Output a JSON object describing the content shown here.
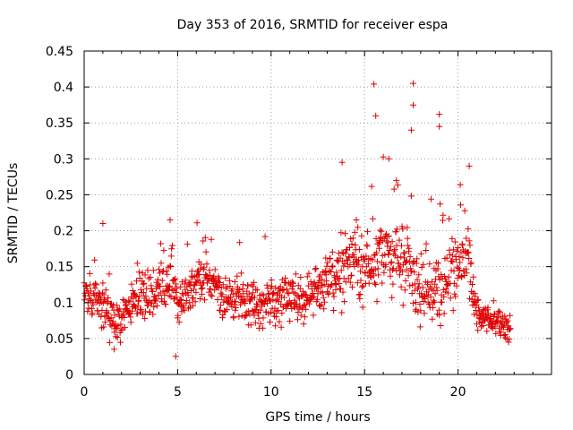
{
  "chart_data": {
    "type": "scatter",
    "title": "Day 353 of 2016, SRMTID for receiver espa",
    "xlabel": "GPS time / hours",
    "ylabel": "SRMTID / TECUs",
    "xlim": [
      0,
      25
    ],
    "ylim": [
      0,
      0.45
    ],
    "xticks": [
      0,
      5,
      10,
      15,
      20
    ],
    "xtick_labels": [
      "0",
      "5",
      "10",
      "15",
      "20"
    ],
    "yticks": [
      0,
      0.05,
      0.1,
      0.15,
      0.2,
      0.25,
      0.3,
      0.35,
      0.4,
      0.45
    ],
    "ytick_labels": [
      "0",
      "0.05",
      "0.1",
      "0.15",
      "0.2",
      "0.25",
      "0.3",
      "0.35",
      "0.4",
      "0.45"
    ],
    "grid": true,
    "marker": "plus",
    "color": "#e00000",
    "series": [
      {
        "name": "SRMTID",
        "x_range": [
          0,
          22.8
        ],
        "x_step": 0.02,
        "baseline_profile": [
          {
            "x": 0.0,
            "y": 0.11
          },
          {
            "x": 1.0,
            "y": 0.1
          },
          {
            "x": 1.7,
            "y": 0.07
          },
          {
            "x": 2.5,
            "y": 0.1
          },
          {
            "x": 4.0,
            "y": 0.12
          },
          {
            "x": 4.6,
            "y": 0.14
          },
          {
            "x": 5.0,
            "y": 0.1
          },
          {
            "x": 6.5,
            "y": 0.14
          },
          {
            "x": 7.5,
            "y": 0.11
          },
          {
            "x": 9.0,
            "y": 0.1
          },
          {
            "x": 10.5,
            "y": 0.1
          },
          {
            "x": 12.0,
            "y": 0.11
          },
          {
            "x": 13.0,
            "y": 0.13
          },
          {
            "x": 14.0,
            "y": 0.15
          },
          {
            "x": 15.0,
            "y": 0.14
          },
          {
            "x": 16.0,
            "y": 0.17
          },
          {
            "x": 17.0,
            "y": 0.16
          },
          {
            "x": 18.0,
            "y": 0.12
          },
          {
            "x": 19.0,
            "y": 0.12
          },
          {
            "x": 20.0,
            "y": 0.16
          },
          {
            "x": 20.5,
            "y": 0.16
          },
          {
            "x": 21.0,
            "y": 0.08
          },
          {
            "x": 22.0,
            "y": 0.075
          },
          {
            "x": 22.8,
            "y": 0.06
          }
        ],
        "spread_profile": [
          {
            "x": 0.0,
            "y": 0.03
          },
          {
            "x": 13.0,
            "y": 0.035
          },
          {
            "x": 14.0,
            "y": 0.05
          },
          {
            "x": 18.5,
            "y": 0.05
          },
          {
            "x": 20.8,
            "y": 0.05
          },
          {
            "x": 21.0,
            "y": 0.02
          },
          {
            "x": 22.8,
            "y": 0.02
          }
        ],
        "notable_points": [
          {
            "x": 1.0,
            "y": 0.21
          },
          {
            "x": 4.6,
            "y": 0.215
          },
          {
            "x": 15.5,
            "y": 0.404
          },
          {
            "x": 15.6,
            "y": 0.36
          },
          {
            "x": 17.6,
            "y": 0.405
          },
          {
            "x": 17.6,
            "y": 0.375
          },
          {
            "x": 17.5,
            "y": 0.34
          },
          {
            "x": 19.0,
            "y": 0.362
          },
          {
            "x": 19.0,
            "y": 0.345
          },
          {
            "x": 16.3,
            "y": 0.3
          },
          {
            "x": 13.8,
            "y": 0.295
          },
          {
            "x": 20.6,
            "y": 0.29
          },
          {
            "x": 16.7,
            "y": 0.27
          },
          {
            "x": 4.9,
            "y": 0.025
          },
          {
            "x": 1.6,
            "y": 0.035
          }
        ]
      }
    ]
  }
}
